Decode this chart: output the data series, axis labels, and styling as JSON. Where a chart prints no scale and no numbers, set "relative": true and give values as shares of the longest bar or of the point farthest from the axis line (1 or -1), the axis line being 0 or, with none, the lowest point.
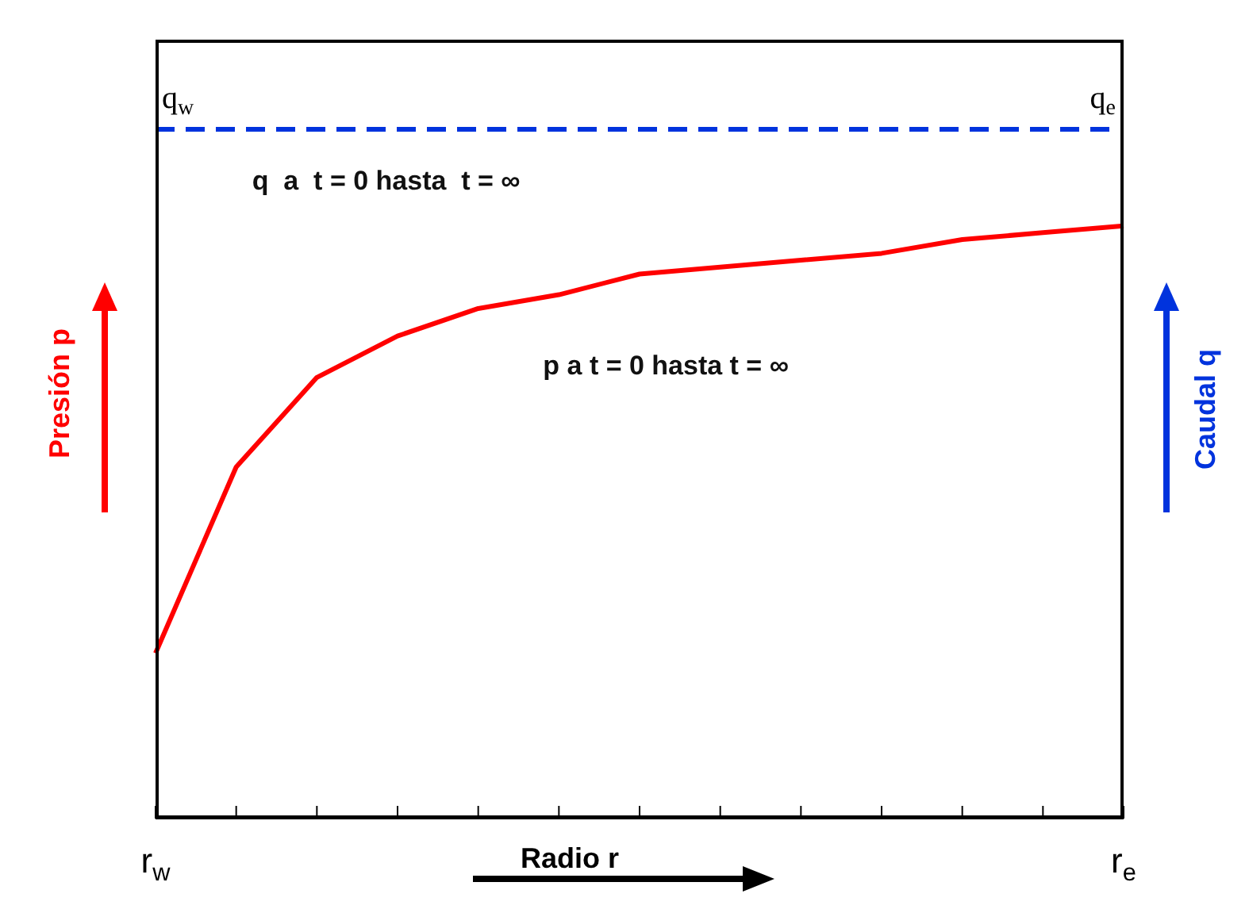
{
  "chart_data": {
    "type": "line",
    "relative": true,
    "xlabel": "Radio r",
    "ylabel": "Presión p",
    "y2label": "Caudal q",
    "categories": [
      "r$_{w}$",
      null,
      null,
      null,
      null,
      null,
      null,
      null,
      null,
      null,
      null,
      null,
      "r$_{e}$"
    ],
    "series": [
      {
        "name": "q  a  t = 0 hasta  t = ∞",
        "color": "#0033dd",
        "line_style": "dashed",
        "values": [
          1,
          1,
          1,
          1,
          1,
          1,
          1,
          1,
          1,
          1,
          1,
          1,
          1
        ]
      },
      {
        "name": "p a t = 0 hasta t = ∞",
        "color": "#ff0000",
        "line_style": "solid",
        "values": [
          0.24,
          0.51,
          0.64,
          0.7,
          0.74,
          0.76,
          0.79,
          0.8,
          0.81,
          0.82,
          0.84,
          0.85,
          0.86
        ]
      }
    ],
    "annotations": [
      "q$_{w}$",
      "q$_{e}$"
    ],
    "grid": false,
    "legend": false,
    "marker": "none"
  }
}
